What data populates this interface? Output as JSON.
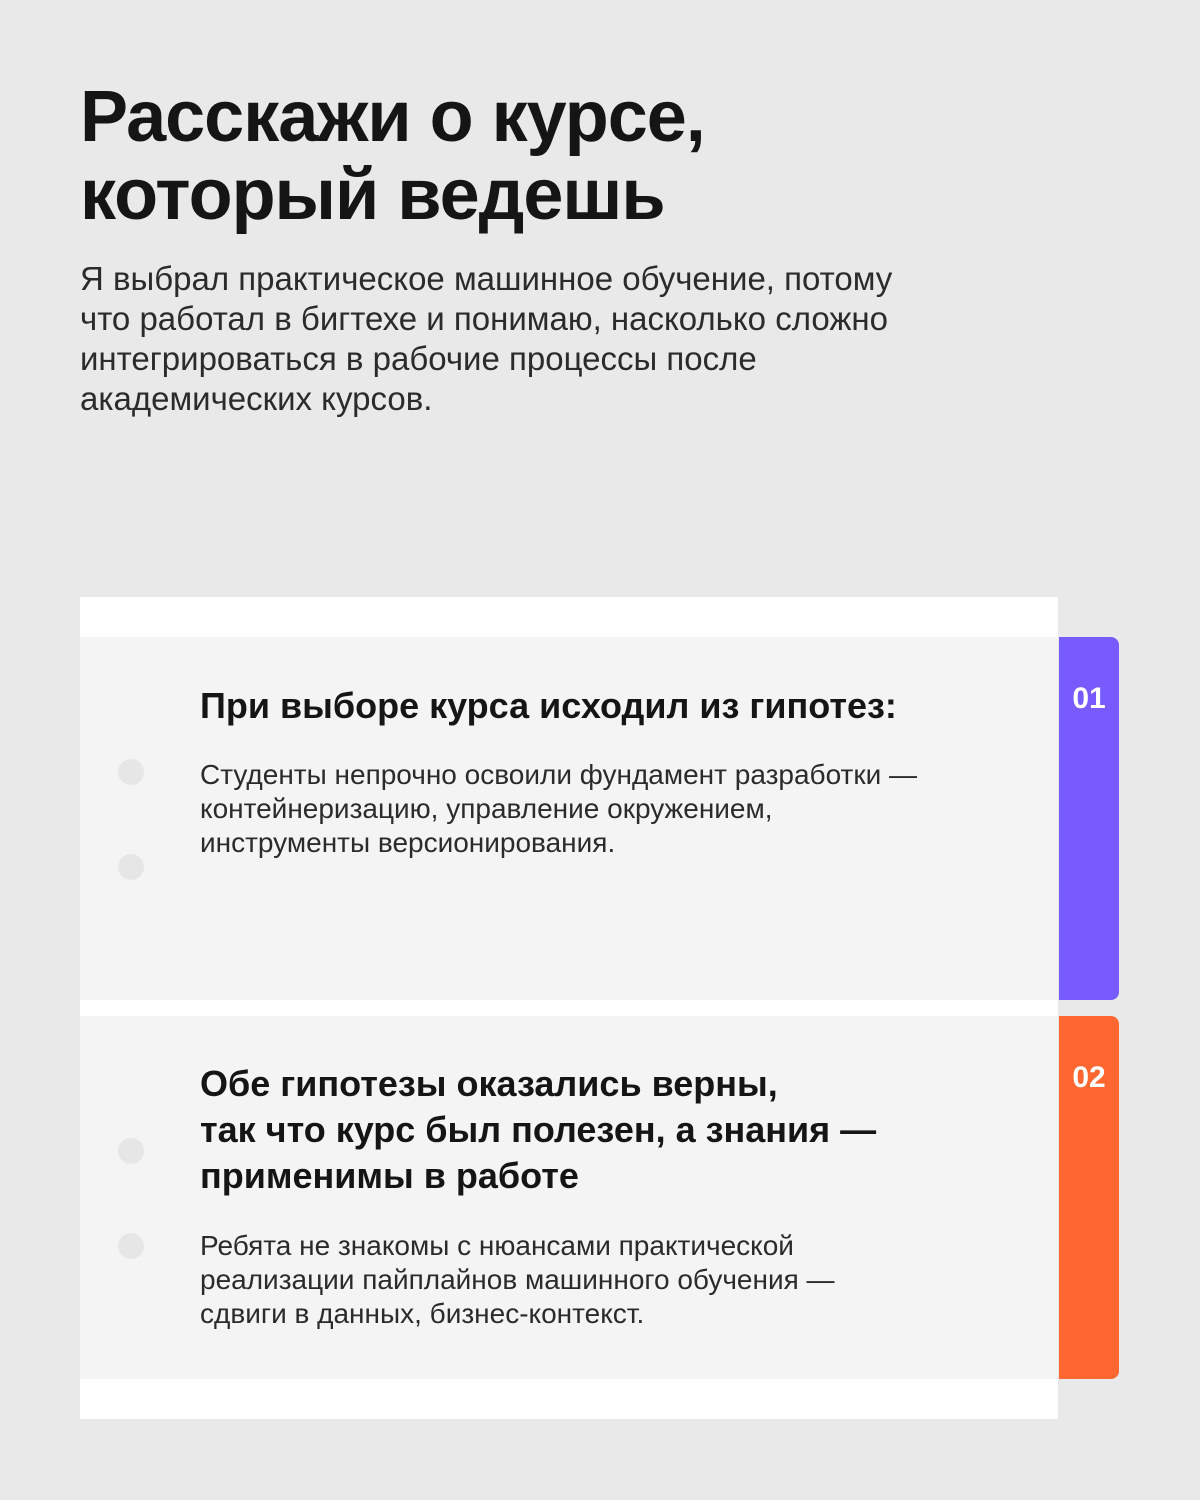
{
  "title": {
    "line1": "Расскажи о курсе,",
    "line2": "который ведешь"
  },
  "intro": {
    "line1": "Я выбрал практическое машинное обучение, потому",
    "line2": "что работал в бигтехе и понимаю, насколько сложно",
    "line3": "интегрироваться в рабочие процессы после",
    "line4": "академических курсов."
  },
  "cards": [
    {
      "number": "01",
      "accent_color": "#785bff",
      "heading": [
        "При выборе курса исходил из гипотез:"
      ],
      "text": [
        "Студенты непрочно освоили фундамент разработки —",
        "контейнеризацию, управление окружением,",
        "инструменты версионирования."
      ]
    },
    {
      "number": "02",
      "accent_color": "#ff6630",
      "heading": [
        "Обе гипотезы оказались верны,",
        "так что курс был полезен, а знания —",
        "применимы в работе"
      ],
      "text": [
        "Ребята не знакомы с нюансами практической",
        "реализации пайплайнов машинного обучения —",
        "сдвиги в данных, бизнес-контекст."
      ]
    }
  ]
}
